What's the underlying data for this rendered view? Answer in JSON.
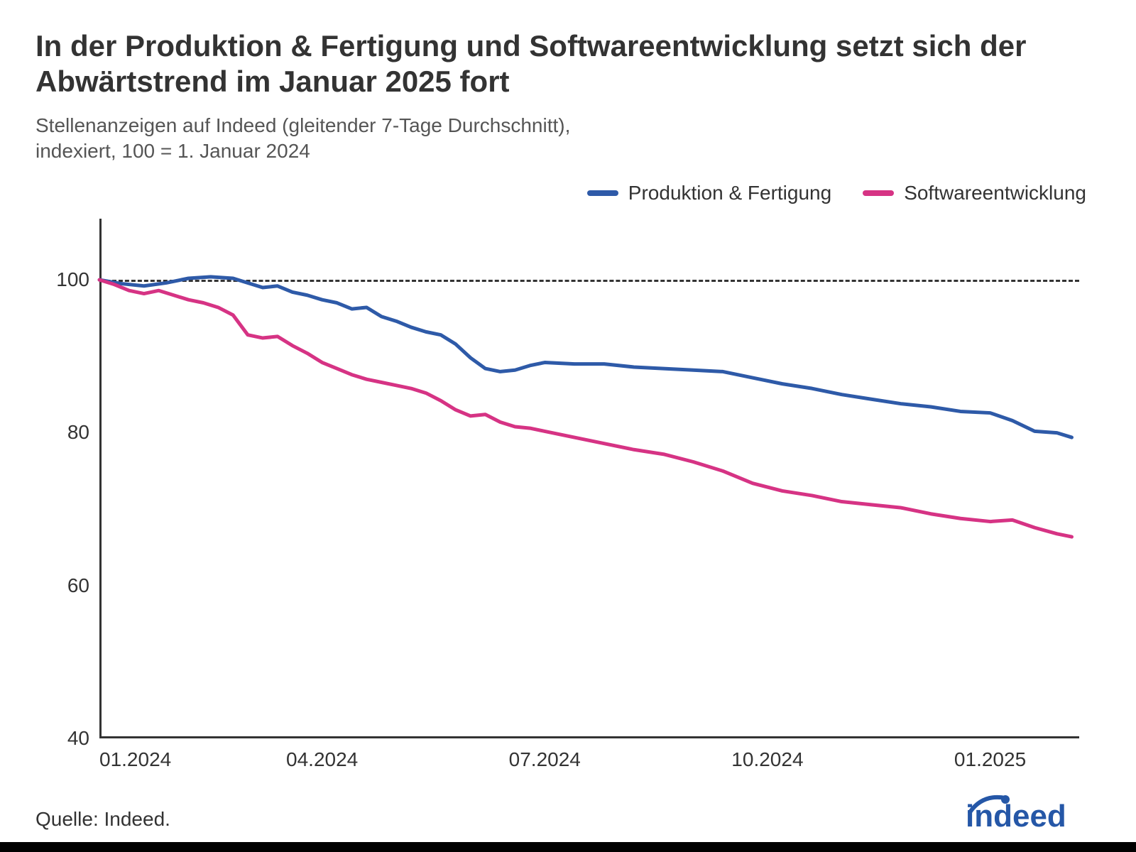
{
  "title": "In der Produktion & Fertigung und Softwareentwicklung setzt sich der Abwärtstrend im Januar 2025 fort",
  "subtitle": "Stellenanzeigen auf Indeed (gleitender 7-Tage Durchschnitt),\nindexiert, 100 = 1. Januar 2024",
  "source": "Quelle: Indeed.",
  "logo": {
    "text": "indeed",
    "color": "#2557a7"
  },
  "chart": {
    "type": "line",
    "background_color": "#ffffff",
    "axis_color": "#333333",
    "axis_line_width": 3,
    "title_fontsize": 42,
    "subtitle_fontsize": 28,
    "tick_fontsize": 28,
    "y": {
      "min": 40,
      "max": 108,
      "ticks": [
        40,
        60,
        80,
        100
      ]
    },
    "x": {
      "min": 0,
      "max": 13.2,
      "ticks": [
        {
          "pos": 0,
          "label": "01.2024"
        },
        {
          "pos": 3,
          "label": "04.2024"
        },
        {
          "pos": 6,
          "label": "07.2024"
        },
        {
          "pos": 9,
          "label": "10.2024"
        },
        {
          "pos": 12,
          "label": "01.2025"
        }
      ]
    },
    "reference_line": {
      "y": 100,
      "color": "#333333",
      "dash": true
    },
    "series": [
      {
        "name": "Produktion & Fertigung",
        "color": "#2e5aa8",
        "line_width": 5,
        "points": [
          [
            0.0,
            100.0
          ],
          [
            0.3,
            99.5
          ],
          [
            0.6,
            99.2
          ],
          [
            0.9,
            99.6
          ],
          [
            1.2,
            100.2
          ],
          [
            1.5,
            100.4
          ],
          [
            1.8,
            100.2
          ],
          [
            2.0,
            99.6
          ],
          [
            2.2,
            99.0
          ],
          [
            2.4,
            99.2
          ],
          [
            2.6,
            98.4
          ],
          [
            2.8,
            98.0
          ],
          [
            3.0,
            97.4
          ],
          [
            3.2,
            97.0
          ],
          [
            3.4,
            96.2
          ],
          [
            3.6,
            96.4
          ],
          [
            3.8,
            95.2
          ],
          [
            4.0,
            94.6
          ],
          [
            4.2,
            93.8
          ],
          [
            4.4,
            93.2
          ],
          [
            4.6,
            92.8
          ],
          [
            4.8,
            91.6
          ],
          [
            5.0,
            89.8
          ],
          [
            5.2,
            88.4
          ],
          [
            5.4,
            88.0
          ],
          [
            5.6,
            88.2
          ],
          [
            5.8,
            88.8
          ],
          [
            6.0,
            89.2
          ],
          [
            6.4,
            89.0
          ],
          [
            6.8,
            89.0
          ],
          [
            7.2,
            88.6
          ],
          [
            7.6,
            88.4
          ],
          [
            8.0,
            88.2
          ],
          [
            8.4,
            88.0
          ],
          [
            8.8,
            87.2
          ],
          [
            9.2,
            86.4
          ],
          [
            9.6,
            85.8
          ],
          [
            10.0,
            85.0
          ],
          [
            10.4,
            84.4
          ],
          [
            10.8,
            83.8
          ],
          [
            11.2,
            83.4
          ],
          [
            11.6,
            82.8
          ],
          [
            12.0,
            82.6
          ],
          [
            12.3,
            81.6
          ],
          [
            12.6,
            80.2
          ],
          [
            12.9,
            80.0
          ],
          [
            13.1,
            79.4
          ]
        ]
      },
      {
        "name": "Softwareentwicklung",
        "color": "#d63384",
        "line_width": 5,
        "points": [
          [
            0.0,
            100.0
          ],
          [
            0.2,
            99.4
          ],
          [
            0.4,
            98.6
          ],
          [
            0.6,
            98.2
          ],
          [
            0.8,
            98.6
          ],
          [
            1.0,
            98.0
          ],
          [
            1.2,
            97.4
          ],
          [
            1.4,
            97.0
          ],
          [
            1.6,
            96.4
          ],
          [
            1.8,
            95.4
          ],
          [
            2.0,
            92.8
          ],
          [
            2.2,
            92.4
          ],
          [
            2.4,
            92.6
          ],
          [
            2.6,
            91.4
          ],
          [
            2.8,
            90.4
          ],
          [
            3.0,
            89.2
          ],
          [
            3.2,
            88.4
          ],
          [
            3.4,
            87.6
          ],
          [
            3.6,
            87.0
          ],
          [
            3.8,
            86.6
          ],
          [
            4.0,
            86.2
          ],
          [
            4.2,
            85.8
          ],
          [
            4.4,
            85.2
          ],
          [
            4.6,
            84.2
          ],
          [
            4.8,
            83.0
          ],
          [
            5.0,
            82.2
          ],
          [
            5.2,
            82.4
          ],
          [
            5.4,
            81.4
          ],
          [
            5.6,
            80.8
          ],
          [
            5.8,
            80.6
          ],
          [
            6.0,
            80.2
          ],
          [
            6.4,
            79.4
          ],
          [
            6.8,
            78.6
          ],
          [
            7.2,
            77.8
          ],
          [
            7.6,
            77.2
          ],
          [
            8.0,
            76.2
          ],
          [
            8.4,
            75.0
          ],
          [
            8.8,
            73.4
          ],
          [
            9.2,
            72.4
          ],
          [
            9.6,
            71.8
          ],
          [
            10.0,
            71.0
          ],
          [
            10.4,
            70.6
          ],
          [
            10.8,
            70.2
          ],
          [
            11.2,
            69.4
          ],
          [
            11.6,
            68.8
          ],
          [
            12.0,
            68.4
          ],
          [
            12.3,
            68.6
          ],
          [
            12.6,
            67.6
          ],
          [
            12.9,
            66.8
          ],
          [
            13.1,
            66.4
          ]
        ]
      }
    ]
  }
}
